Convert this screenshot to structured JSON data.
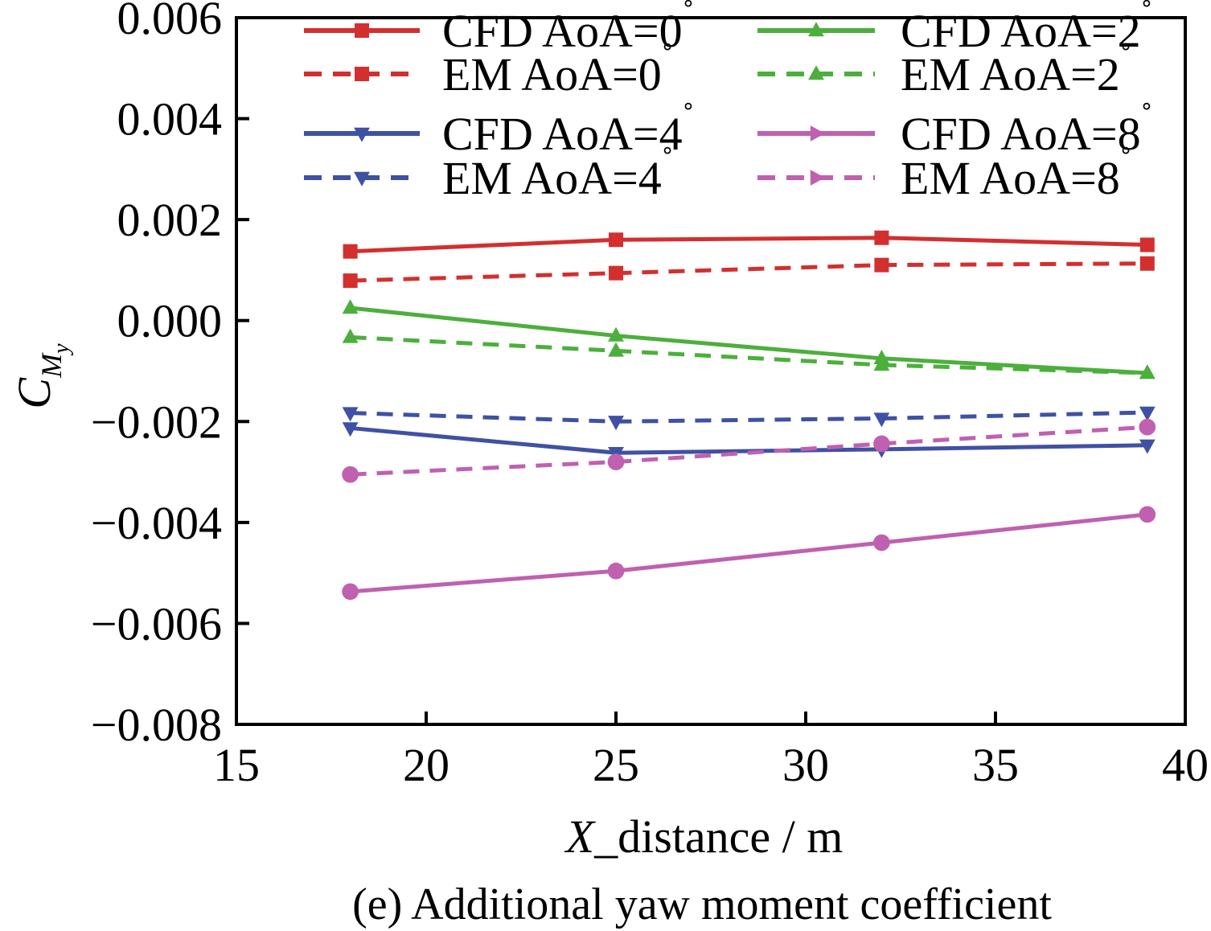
{
  "chart_data": {
    "type": "line",
    "caption": "(e) Additional yaw moment coefficient",
    "xlabel_italic": "X",
    "xlabel_rest": "_distance / m",
    "ylabel_main": "C",
    "ylabel_sub": "M",
    "ylabel_subsub": "y",
    "xlim": [
      15,
      40
    ],
    "ylim": [
      -0.008,
      0.006
    ],
    "xticks": [
      15,
      20,
      25,
      30,
      35,
      40
    ],
    "xtick_labels": [
      "15",
      "20",
      "25",
      "30",
      "35",
      "40"
    ],
    "yticks": [
      0.006,
      0.004,
      0.002,
      0.0,
      -0.002,
      -0.004,
      -0.006,
      -0.008
    ],
    "ytick_labels": [
      "0.006",
      "0.004",
      "0.002",
      "0.000",
      "−0.002",
      "−0.004",
      "−0.006",
      "−0.008"
    ],
    "x": [
      18,
      25,
      32,
      39
    ],
    "legend_placement": "top, two columns",
    "series": [
      {
        "name": "CFD AoA=0",
        "color": "#d32f2f",
        "dash": "solid",
        "marker": "square",
        "values": [
          0.00137,
          0.0016,
          0.00164,
          0.0015
        ]
      },
      {
        "name": "EM AoA=0",
        "color": "#d32f2f",
        "dash": "dashed",
        "marker": "square",
        "values": [
          0.00079,
          0.00094,
          0.0011,
          0.00113
        ]
      },
      {
        "name": "CFD AoA=4",
        "color": "#3f51a3",
        "dash": "solid",
        "marker": "triangle-down",
        "values": [
          -0.00213,
          -0.00262,
          -0.00255,
          -0.00247
        ]
      },
      {
        "name": "EM AoA=4",
        "color": "#3f51a3",
        "dash": "dashed",
        "marker": "triangle-down",
        "values": [
          -0.00183,
          -0.002,
          -0.00194,
          -0.00182
        ]
      },
      {
        "name": "CFD AoA=2",
        "color": "#4caf3c",
        "dash": "solid",
        "marker": "triangle-up",
        "values": [
          0.00025,
          -0.0003,
          -0.00075,
          -0.00104
        ]
      },
      {
        "name": "EM AoA=2",
        "color": "#4caf3c",
        "dash": "dashed",
        "marker": "triangle-up",
        "values": [
          -0.00033,
          -0.0006,
          -0.00088,
          -0.00104
        ]
      },
      {
        "name": "CFD AoA=8",
        "color": "#c060b0",
        "dash": "solid",
        "marker": "triangle-right",
        "values": [
          -0.00537,
          -0.00496,
          -0.0044,
          -0.00384
        ]
      },
      {
        "name": "EM AoA=8",
        "color": "#c060b0",
        "dash": "dashed",
        "marker": "triangle-right",
        "values": [
          -0.00305,
          -0.0028,
          -0.00244,
          -0.00211
        ]
      }
    ],
    "degree_symbol": "˚"
  }
}
